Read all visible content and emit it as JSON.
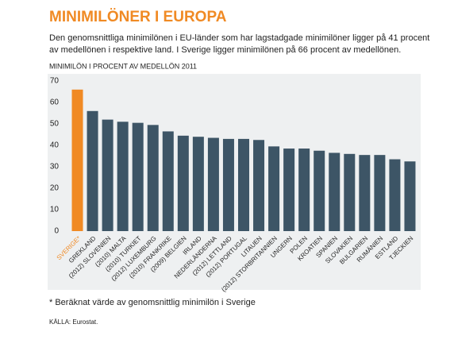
{
  "chart_data": {
    "type": "bar",
    "title": "MINIMILÖNER I EUROPA",
    "subtitle": [
      "Den genomsnittliga minimilönen i EU-länder som har lagstadgade minimilöner ligger på 41 procent",
      "av medellönen i respektive land. I Sverige ligger minimilönen på 66 procent av medellönen."
    ],
    "y_label": "MINIMILÖN I PROCENT AV MEDELLÖN 2011",
    "categories": [
      "SVERIGE*",
      "GREKLAND",
      "(2012) SLOVENIEN",
      "(2010) MALTA",
      "(2010) TURKIET",
      "(2012) LUXEMBURG",
      "(2010) FRANKRIKE",
      "(2009) BELGIEN",
      "IRLAND",
      "NEDERLÄNDERNA",
      "(2012) LETTLAND",
      "(2012) PORTUGAL",
      "LITAUEN",
      "(2012) STORBRITANNIEN",
      "UNGERN",
      "POLEN",
      "KROATIEN",
      "SPANIEN",
      "SLOVAKIEN",
      "BULGARIEN",
      "RUMÄNIEN",
      "ESTLAND",
      "TJECKIEN"
    ],
    "values": [
      66,
      56,
      52,
      51,
      50.5,
      49.5,
      46.5,
      44.5,
      44,
      43.5,
      43,
      43,
      42.5,
      39.5,
      38.5,
      38.5,
      37.5,
      36.5,
      36,
      35.5,
      35.5,
      33.5,
      32.5
    ],
    "colors": [
      "#f08a24",
      "#3d5566",
      "#3d5566",
      "#3d5566",
      "#3d5566",
      "#3d5566",
      "#3d5566",
      "#3d5566",
      "#3d5566",
      "#3d5566",
      "#3d5566",
      "#3d5566",
      "#3d5566",
      "#3d5566",
      "#3d5566",
      "#3d5566",
      "#3d5566",
      "#3d5566",
      "#3d5566",
      "#3d5566",
      "#3d5566",
      "#3d5566",
      "#3d5566"
    ],
    "ylim": [
      0,
      70
    ],
    "yticks": [
      0,
      10,
      20,
      30,
      40,
      50,
      60,
      70
    ],
    "grid": false,
    "footnote": "* Beräknat värde av genomsnittlig minimilön i Sverige",
    "source": "KÄLLA: Eurostat."
  }
}
